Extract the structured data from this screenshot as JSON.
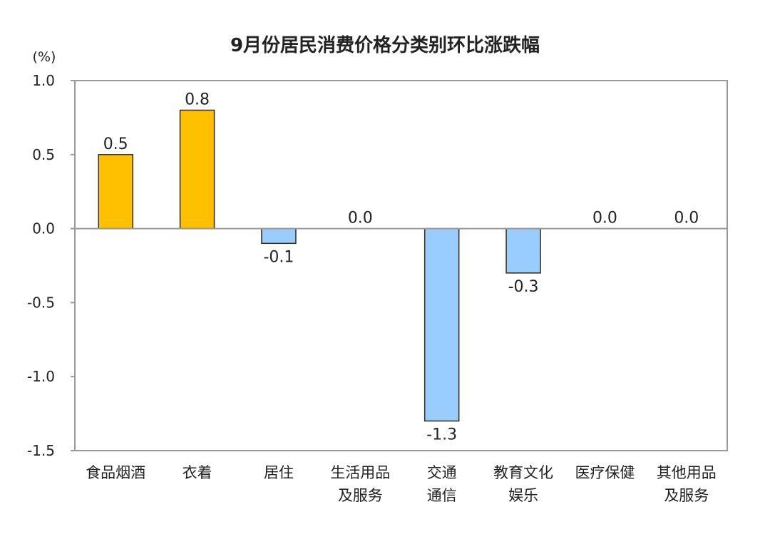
{
  "chart_data": {
    "type": "bar",
    "title": "9月份居民消费价格分类别环比涨跌幅",
    "ylabel": "(%)",
    "xlabel": "",
    "ylim": [
      -1.5,
      1.0
    ],
    "yticks": [
      "1.0",
      "0.5",
      "0.0",
      "-0.5",
      "-1.0",
      "-1.5"
    ],
    "ytick_values": [
      1.0,
      0.5,
      0.0,
      -0.5,
      -1.0,
      -1.5
    ],
    "categories": [
      [
        "食品烟酒"
      ],
      [
        "衣着"
      ],
      [
        "居住"
      ],
      [
        "生活用品",
        "及服务"
      ],
      [
        "交通",
        "通信"
      ],
      [
        "教育文化",
        "娱乐"
      ],
      [
        "医疗保健"
      ],
      [
        "其他用品",
        "及服务"
      ]
    ],
    "values": [
      0.5,
      0.8,
      -0.1,
      0.0,
      -1.3,
      -0.3,
      0.0,
      0.0
    ],
    "data_labels": [
      "0.5",
      "0.8",
      "-0.1",
      "0.0",
      "-1.3",
      "-0.3",
      "0.0",
      "0.0"
    ],
    "grid": false,
    "legend": "none",
    "colors": {
      "positive": "#FFC000",
      "negative": "#99CCFF",
      "border": "#3a2a10",
      "axis": "#999999"
    }
  }
}
